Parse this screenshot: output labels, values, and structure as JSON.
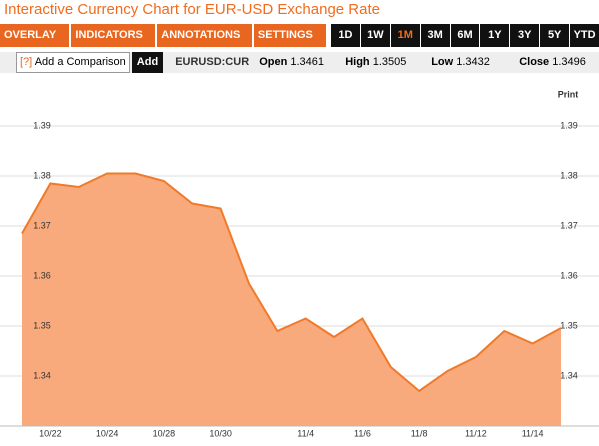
{
  "header": {
    "title": "Interactive Currency Chart for EUR-USD Exchange Rate"
  },
  "toolbar": {
    "menus": [
      "OVERLAY ▼",
      "INDICATORS ▼",
      "ANNOTATIONS ▼",
      "SETTINGS ▼"
    ],
    "ranges": [
      "1D",
      "1W",
      "1M",
      "3M",
      "6M",
      "1Y",
      "3Y",
      "5Y",
      "YTD"
    ],
    "active_range": 2
  },
  "quote_bar": {
    "help": "[?]",
    "comparison": "Add a Comparison",
    "add": "Add",
    "symbol": "EURUSD:CUR",
    "open_label": "Open",
    "open": 1.3461,
    "high_label": "High",
    "high": 1.3505,
    "low_label": "Low",
    "low": 1.3432,
    "close_label": "Close",
    "close": 1.3496
  },
  "print": "Print",
  "chart_data": {
    "type": "area",
    "categories": [
      null,
      "10/22",
      null,
      "10/24",
      null,
      "10/28",
      null,
      "10/30",
      null,
      null,
      "11/4",
      null,
      "11/6",
      null,
      "11/8",
      null,
      "11/12",
      null,
      "11/14",
      null
    ],
    "values": [
      1.3685,
      1.3785,
      1.3778,
      1.3805,
      1.3805,
      1.379,
      1.3745,
      1.3735,
      1.3585,
      1.349,
      1.3515,
      1.3478,
      1.3515,
      1.3418,
      1.337,
      1.341,
      1.3438,
      1.349,
      1.3465,
      1.3496
    ],
    "color": "#f07a2a",
    "fill": "#f9aa7c",
    "ylim": [
      1.33,
      1.398
    ],
    "yticks": [
      1.34,
      1.35,
      1.36,
      1.37,
      1.38,
      1.39
    ],
    "grid": true
  }
}
